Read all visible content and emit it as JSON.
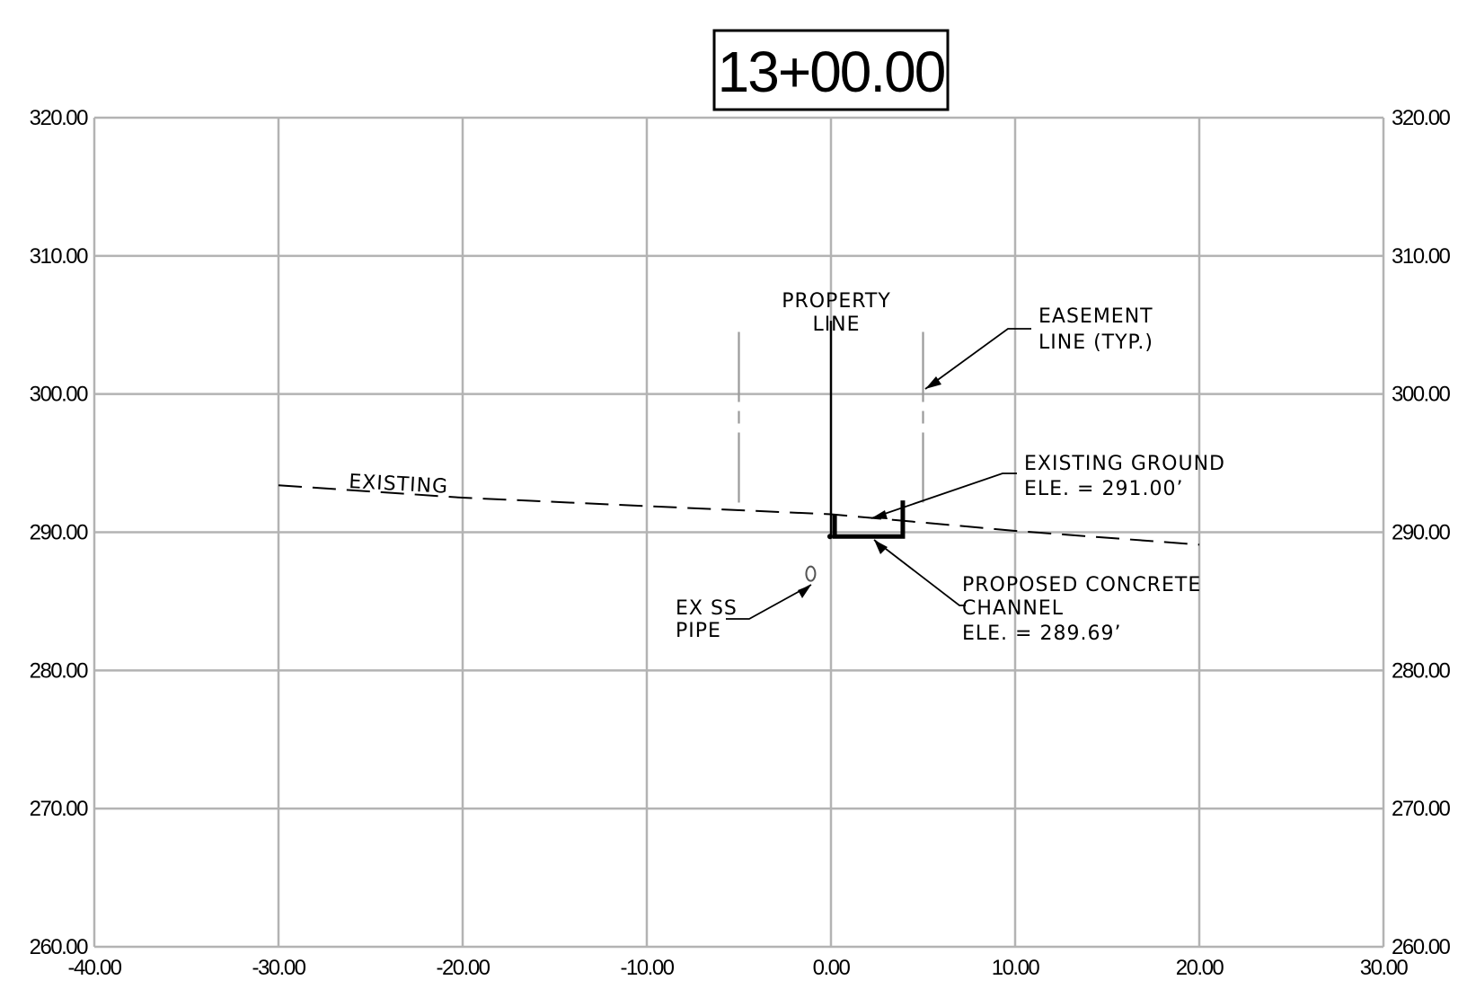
{
  "title": "13+00.00",
  "chart_data": {
    "type": "cross-section",
    "xlim": [
      -40,
      30
    ],
    "ylim": [
      260,
      320
    ],
    "x_ticks": [
      "-40.00",
      "-30.00",
      "-20.00",
      "-10.00",
      "0.00",
      "10.00",
      "20.00",
      "30.00"
    ],
    "y_ticks": [
      "320.00",
      "310.00",
      "300.00",
      "290.00",
      "280.00",
      "270.00",
      "260.00"
    ],
    "existing_ground": {
      "label": "EXISTING",
      "points": [
        [
          -30,
          293.4
        ],
        [
          -20,
          292.5
        ],
        [
          -8.5,
          291.8
        ],
        [
          0,
          291.3
        ],
        [
          10,
          290.1
        ],
        [
          20,
          289.1
        ]
      ]
    },
    "easement_lines_x": [
      -5,
      5
    ],
    "property_line_x": 0,
    "channel": {
      "x_start": 0.2,
      "x_end": 3.9,
      "invert": 289.69,
      "left_top": 291.3,
      "right_top": 292.3
    },
    "pipe": {
      "x": -1.1,
      "y": 287.0
    }
  },
  "annotations": {
    "property_line": [
      "PROPERTY",
      "LINE"
    ],
    "easement_line": [
      "EASEMENT",
      "LINE (TYP.)"
    ],
    "existing_ground": [
      "EXISTING GROUND",
      "ELE. = 291.00’"
    ],
    "channel": [
      "PROPOSED CONCRETE",
      "CHANNEL",
      "ELE. = 289.69’"
    ],
    "pipe": [
      "EX SS",
      "PIPE"
    ]
  }
}
